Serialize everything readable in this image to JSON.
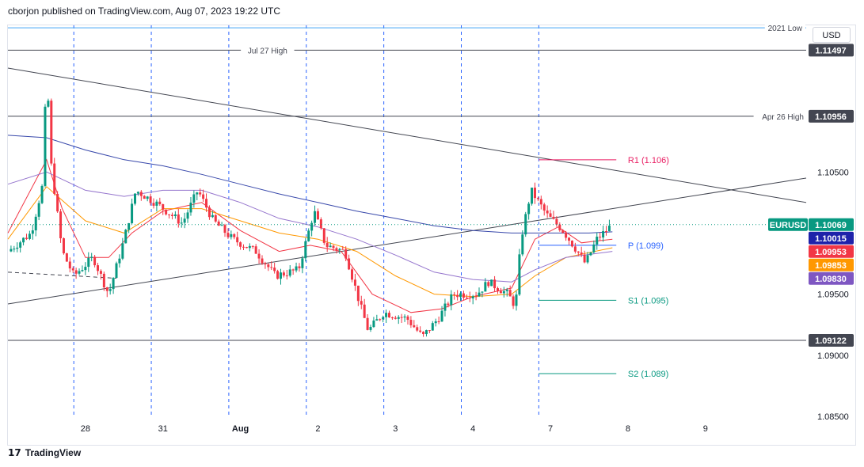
{
  "header": {
    "text": "cborjon published on TradingView.com, Aug 07, 2023 19:22 UTC"
  },
  "footer": {
    "logo": "17",
    "brand": "TradingView"
  },
  "currency": "USD",
  "colors": {
    "up": "#089981",
    "down": "#f23645",
    "ema_red": "#f23645",
    "ema_orange": "#ff9800",
    "ema_purple": "#9575cd",
    "ema_blue": "#3949ab",
    "session": "#2962ff",
    "pivot_r": "#e91e63",
    "pivot_p": "#2962ff",
    "pivot_s": "#089981"
  },
  "chart_data": {
    "type": "candlestick",
    "symbol": "EURUSD",
    "last_price": "1.10069",
    "y_range": [
      1.085,
      1.117
    ],
    "x_range": [
      -1.0,
      9.3
    ],
    "y_ticks": [
      "1.10500",
      "1.09500",
      "1.09000",
      "1.08500"
    ],
    "x_ticks": [
      {
        "label": "28",
        "x": 0.0
      },
      {
        "label": "31",
        "x": 1.0
      },
      {
        "label": "Aug",
        "x": 2.0
      },
      {
        "label": "2",
        "x": 3.0
      },
      {
        "label": "3",
        "x": 4.0
      },
      {
        "label": "4",
        "x": 5.0
      },
      {
        "label": "7",
        "x": 6.0
      },
      {
        "label": "8",
        "x": 7.0
      },
      {
        "label": "9",
        "x": 8.0
      }
    ],
    "session_lines": [
      -0.15,
      0.85,
      1.85,
      2.85,
      3.85,
      4.85,
      5.85
    ],
    "horizontal_levels": [
      {
        "label": "2021 Low",
        "value": 1.1168,
        "color": "#42a5f5",
        "tag": ""
      },
      {
        "label": "Jul 27 High",
        "value": 1.11497,
        "color": "#434651",
        "tag": "1.11497"
      },
      {
        "label": "Apr 26 High",
        "value": 1.10956,
        "color": "#434651",
        "tag": "1.10956"
      },
      {
        "label": "",
        "value": 1.09122,
        "color": "#434651",
        "tag": "1.09122"
      }
    ],
    "pivots": [
      {
        "label": "R1 (1.106)",
        "value": 1.106,
        "kind": "r"
      },
      {
        "label": "P (1.099)",
        "value": 1.099,
        "kind": "p"
      },
      {
        "label": "S1 (1.095)",
        "value": 1.0945,
        "kind": "s"
      },
      {
        "label": "S2 (1.089)",
        "value": 1.0885,
        "kind": "s"
      }
    ],
    "ema_tags": [
      {
        "value": "1.10015",
        "color": "#1e22aa"
      },
      {
        "value": "1.09953",
        "color": "#f23645"
      },
      {
        "value": "1.09853",
        "color": "#ff9800"
      },
      {
        "value": "1.09830",
        "color": "#7e57c2"
      }
    ],
    "trendlines": [
      {
        "x1": -1.0,
        "y1": 1.1135,
        "x2": 9.3,
        "y2": 1.1025
      },
      {
        "x1": -1.0,
        "y1": 1.0942,
        "x2": 9.3,
        "y2": 1.1045
      }
    ],
    "dashed_line": {
      "x1": -1.0,
      "y1": 1.0968,
      "x2": 0.4,
      "y2": 1.0963
    },
    "anchors": [
      {
        "x": -1.0,
        "y": 1.0985
      },
      {
        "x": -0.7,
        "y": 1.1
      },
      {
        "x": -0.55,
        "y": 1.104
      },
      {
        "x": -0.5,
        "y": 1.114
      },
      {
        "x": -0.45,
        "y": 1.106
      },
      {
        "x": -0.3,
        "y": 1.0985
      },
      {
        "x": -0.15,
        "y": 1.0965
      },
      {
        "x": 0.1,
        "y": 1.098
      },
      {
        "x": 0.3,
        "y": 1.095
      },
      {
        "x": 0.5,
        "y": 1.0995
      },
      {
        "x": 0.65,
        "y": 1.1035
      },
      {
        "x": 0.9,
        "y": 1.1025
      },
      {
        "x": 1.25,
        "y": 1.1008
      },
      {
        "x": 1.45,
        "y": 1.1035
      },
      {
        "x": 1.65,
        "y": 1.101
      },
      {
        "x": 1.9,
        "y": 1.0995
      },
      {
        "x": 2.2,
        "y": 1.0985
      },
      {
        "x": 2.45,
        "y": 1.0965
      },
      {
        "x": 2.75,
        "y": 1.097
      },
      {
        "x": 2.95,
        "y": 1.1018
      },
      {
        "x": 3.1,
        "y": 1.099
      },
      {
        "x": 3.35,
        "y": 1.0985
      },
      {
        "x": 3.55,
        "y": 1.094
      },
      {
        "x": 3.65,
        "y": 1.092
      },
      {
        "x": 3.85,
        "y": 1.0935
      },
      {
        "x": 4.15,
        "y": 1.093
      },
      {
        "x": 4.35,
        "y": 1.0915
      },
      {
        "x": 4.55,
        "y": 1.093
      },
      {
        "x": 4.75,
        "y": 1.095
      },
      {
        "x": 5.05,
        "y": 1.095
      },
      {
        "x": 5.2,
        "y": 1.096
      },
      {
        "x": 5.45,
        "y": 1.095
      },
      {
        "x": 5.55,
        "y": 1.094
      },
      {
        "x": 5.62,
        "y": 1.0995
      },
      {
        "x": 5.75,
        "y": 1.1035
      },
      {
        "x": 5.95,
        "y": 1.1015
      },
      {
        "x": 6.15,
        "y": 1.1003
      },
      {
        "x": 6.35,
        "y": 1.0985
      },
      {
        "x": 6.45,
        "y": 1.0975
      },
      {
        "x": 6.6,
        "y": 1.0995
      },
      {
        "x": 6.8,
        "y": 1.1007
      }
    ],
    "emas": [
      {
        "name": "red",
        "color": "#f23645",
        "points": [
          [
            -1.0,
            1.1
          ],
          [
            -0.5,
            1.106
          ],
          [
            -0.3,
            1.102
          ],
          [
            0.0,
            1.098
          ],
          [
            0.3,
            1.098
          ],
          [
            0.6,
            1.1
          ],
          [
            1.0,
            1.1018
          ],
          [
            1.5,
            1.1025
          ],
          [
            2.0,
            1.1002
          ],
          [
            2.5,
            1.0985
          ],
          [
            2.9,
            1.099
          ],
          [
            3.3,
            1.0985
          ],
          [
            3.7,
            1.095
          ],
          [
            4.2,
            1.0935
          ],
          [
            4.6,
            1.0938
          ],
          [
            5.0,
            1.0948
          ],
          [
            5.5,
            1.0955
          ],
          [
            5.8,
            1.0995
          ],
          [
            6.1,
            1.1005
          ],
          [
            6.4,
            1.0992
          ],
          [
            6.8,
            1.0995
          ]
        ]
      },
      {
        "name": "orange",
        "color": "#ff9800",
        "points": [
          [
            -1.0,
            1.0995
          ],
          [
            -0.5,
            1.1038
          ],
          [
            0.0,
            1.101
          ],
          [
            0.5,
            1.1
          ],
          [
            1.0,
            1.102
          ],
          [
            1.5,
            1.102
          ],
          [
            2.0,
            1.101
          ],
          [
            2.5,
            1.1
          ],
          [
            3.0,
            1.0995
          ],
          [
            3.5,
            1.0985
          ],
          [
            4.0,
            1.0965
          ],
          [
            4.5,
            1.095
          ],
          [
            5.0,
            1.0948
          ],
          [
            5.5,
            1.095
          ],
          [
            5.8,
            1.0965
          ],
          [
            6.2,
            1.098
          ],
          [
            6.8,
            1.0988
          ]
        ]
      },
      {
        "name": "purple",
        "color": "#9575cd",
        "points": [
          [
            -1.0,
            1.104
          ],
          [
            -0.5,
            1.105
          ],
          [
            0.0,
            1.1035
          ],
          [
            0.5,
            1.103
          ],
          [
            1.0,
            1.1035
          ],
          [
            1.5,
            1.1035
          ],
          [
            2.0,
            1.1025
          ],
          [
            2.5,
            1.1012
          ],
          [
            3.0,
            1.1005
          ],
          [
            3.5,
            1.0995
          ],
          [
            4.0,
            1.0982
          ],
          [
            4.5,
            1.0968
          ],
          [
            5.0,
            1.0962
          ],
          [
            5.5,
            1.096
          ],
          [
            5.8,
            1.097
          ],
          [
            6.2,
            1.098
          ],
          [
            6.8,
            1.0985
          ]
        ]
      },
      {
        "name": "blue",
        "color": "#3949ab",
        "points": [
          [
            -1.0,
            1.108
          ],
          [
            -0.5,
            1.1078
          ],
          [
            0.0,
            1.1068
          ],
          [
            0.5,
            1.106
          ],
          [
            1.0,
            1.1055
          ],
          [
            1.5,
            1.1048
          ],
          [
            2.0,
            1.104
          ],
          [
            2.5,
            1.1032
          ],
          [
            3.0,
            1.1025
          ],
          [
            3.5,
            1.1018
          ],
          [
            4.0,
            1.1012
          ],
          [
            4.5,
            1.1006
          ],
          [
            5.0,
            1.1002
          ],
          [
            5.5,
            1.1
          ],
          [
            6.0,
            1.1
          ],
          [
            6.5,
            1.1
          ],
          [
            6.8,
            1.1001
          ]
        ]
      }
    ]
  }
}
